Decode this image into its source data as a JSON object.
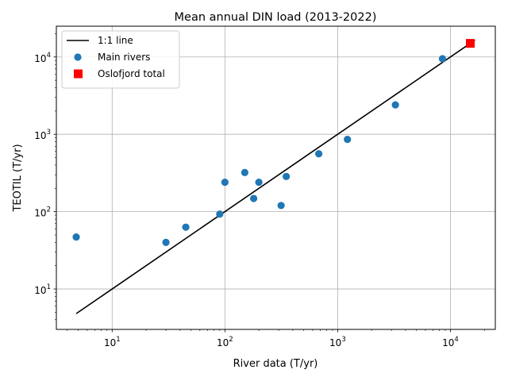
{
  "chart_data": {
    "type": "scatter",
    "title": "Mean annual DIN load (2013-2022)",
    "xlabel": "River data (T/yr)",
    "ylabel": "TEOTIL (T/yr)",
    "xscale": "log",
    "yscale": "log",
    "xlim": [
      3.2,
      25000
    ],
    "ylim": [
      3.0,
      25000
    ],
    "xticks": [
      {
        "base": "10",
        "exp": "1",
        "value": 10
      },
      {
        "base": "10",
        "exp": "2",
        "value": 100
      },
      {
        "base": "10",
        "exp": "3",
        "value": 1000
      },
      {
        "base": "10",
        "exp": "4",
        "value": 10000
      }
    ],
    "yticks": [
      {
        "base": "10",
        "exp": "1",
        "value": 10
      },
      {
        "base": "10",
        "exp": "2",
        "value": 100
      },
      {
        "base": "10",
        "exp": "3",
        "value": 1000
      },
      {
        "base": "10",
        "exp": "4",
        "value": 10000
      }
    ],
    "grid": true,
    "legend_position": "top-left",
    "series": [
      {
        "name": "1:1 line",
        "kind": "line",
        "color": "#000000",
        "points": [
          {
            "x": 4.8,
            "y": 4.8
          },
          {
            "x": 16500,
            "y": 16500
          }
        ]
      },
      {
        "name": "Main rivers",
        "kind": "scatter",
        "marker": "circle",
        "color": "#1f77b4",
        "points": [
          {
            "x": 4.8,
            "y": 47
          },
          {
            "x": 30,
            "y": 40
          },
          {
            "x": 45,
            "y": 63
          },
          {
            "x": 90,
            "y": 93
          },
          {
            "x": 100,
            "y": 240
          },
          {
            "x": 150,
            "y": 320
          },
          {
            "x": 180,
            "y": 148
          },
          {
            "x": 200,
            "y": 240
          },
          {
            "x": 315,
            "y": 120
          },
          {
            "x": 350,
            "y": 285
          },
          {
            "x": 680,
            "y": 560
          },
          {
            "x": 1220,
            "y": 860
          },
          {
            "x": 3250,
            "y": 2400
          },
          {
            "x": 8500,
            "y": 9500
          }
        ]
      },
      {
        "name": "Oslofjord total",
        "kind": "scatter",
        "marker": "square",
        "color": "#ff0000",
        "points": [
          {
            "x": 15000,
            "y": 15000
          }
        ]
      }
    ]
  }
}
